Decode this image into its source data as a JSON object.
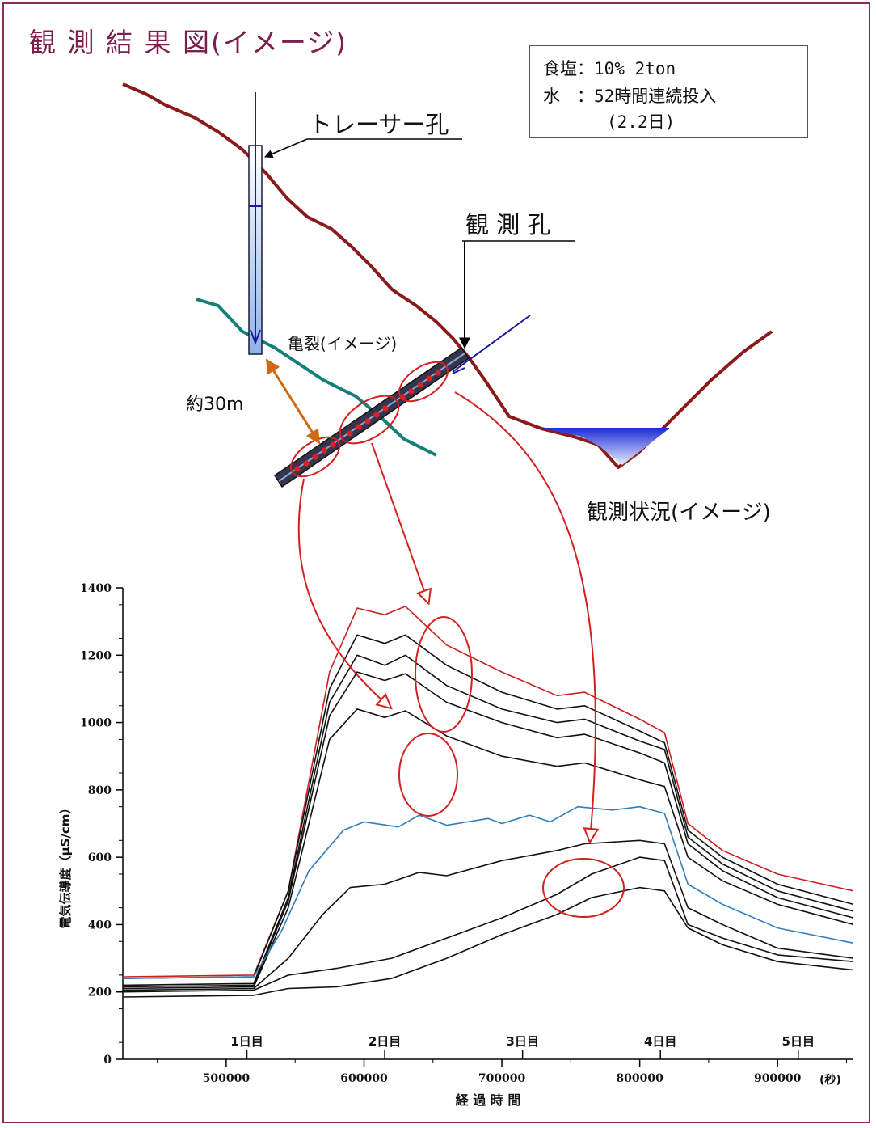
{
  "title": "観 測 結 果 図(イメージ)",
  "info_box": {
    "line1": "食塩：10% 2ton",
    "line2": "水　：52時間連続投入",
    "line3": "(2.2日)"
  },
  "diagram": {
    "tracer_hole_label": "トレーサー孔",
    "observation_hole_label": "観 測 孔",
    "crack_label": "亀裂(イメージ)",
    "distance_label": "約30m",
    "situation_label": "観測状況(イメージ)"
  },
  "colors": {
    "title": "#7a1e4e",
    "frame": "#8b2a57",
    "ground_line": "#8b1a1a",
    "crack_line": "#138078",
    "water": "#1e2fd6",
    "red_series": "#cc2020",
    "blue_series": "#2e7fc0",
    "annotation": "#d42020",
    "distance_arrow": "#d06a10"
  },
  "chart_data": {
    "type": "line",
    "xlabel": "経 過 時 間",
    "x_unit_label": "(秒)",
    "ylabel": "電気伝導度（μS/cm）",
    "xlim": [
      425000,
      955000
    ],
    "ylim": [
      0,
      1400
    ],
    "x_ticks": [
      500000,
      600000,
      700000,
      800000,
      900000
    ],
    "y_ticks": [
      0,
      200,
      400,
      600,
      800,
      1000,
      1200,
      1400
    ],
    "day_labels": [
      {
        "label": "1日目",
        "x": 515000
      },
      {
        "label": "2日目",
        "x": 615000
      },
      {
        "label": "3日目",
        "x": 715000
      },
      {
        "label": "4日目",
        "x": 815000
      },
      {
        "label": "5日目",
        "x": 915000
      }
    ],
    "series": [
      {
        "color": "#cc2020",
        "points": [
          [
            425000,
            245
          ],
          [
            520000,
            250
          ],
          [
            545000,
            500
          ],
          [
            575000,
            1150
          ],
          [
            595000,
            1340
          ],
          [
            615000,
            1320
          ],
          [
            630000,
            1345
          ],
          [
            660000,
            1230
          ],
          [
            700000,
            1150
          ],
          [
            740000,
            1080
          ],
          [
            760000,
            1090
          ],
          [
            800000,
            1010
          ],
          [
            818000,
            970
          ],
          [
            835000,
            700
          ],
          [
            860000,
            620
          ],
          [
            900000,
            550
          ],
          [
            955000,
            500
          ]
        ]
      },
      {
        "color": "#111111",
        "points": [
          [
            425000,
            240
          ],
          [
            520000,
            245
          ],
          [
            545000,
            500
          ],
          [
            575000,
            1100
          ],
          [
            595000,
            1260
          ],
          [
            615000,
            1235
          ],
          [
            630000,
            1260
          ],
          [
            660000,
            1170
          ],
          [
            700000,
            1090
          ],
          [
            740000,
            1040
          ],
          [
            760000,
            1050
          ],
          [
            800000,
            975
          ],
          [
            818000,
            940
          ],
          [
            835000,
            680
          ],
          [
            860000,
            600
          ],
          [
            900000,
            520
          ],
          [
            955000,
            460
          ]
        ]
      },
      {
        "color": "#111111",
        "points": [
          [
            425000,
            220
          ],
          [
            520000,
            225
          ],
          [
            545000,
            480
          ],
          [
            575000,
            1060
          ],
          [
            595000,
            1200
          ],
          [
            615000,
            1170
          ],
          [
            630000,
            1200
          ],
          [
            660000,
            1110
          ],
          [
            700000,
            1040
          ],
          [
            740000,
            1000
          ],
          [
            760000,
            1010
          ],
          [
            800000,
            945
          ],
          [
            818000,
            920
          ],
          [
            835000,
            660
          ],
          [
            860000,
            580
          ],
          [
            900000,
            500
          ],
          [
            955000,
            440
          ]
        ]
      },
      {
        "color": "#111111",
        "points": [
          [
            425000,
            215
          ],
          [
            520000,
            220
          ],
          [
            545000,
            470
          ],
          [
            575000,
            1020
          ],
          [
            595000,
            1150
          ],
          [
            615000,
            1125
          ],
          [
            630000,
            1145
          ],
          [
            660000,
            1060
          ],
          [
            700000,
            1000
          ],
          [
            740000,
            955
          ],
          [
            760000,
            965
          ],
          [
            800000,
            910
          ],
          [
            818000,
            880
          ],
          [
            835000,
            640
          ],
          [
            860000,
            560
          ],
          [
            900000,
            480
          ],
          [
            955000,
            420
          ]
        ]
      },
      {
        "color": "#111111",
        "points": [
          [
            425000,
            210
          ],
          [
            520000,
            215
          ],
          [
            545000,
            450
          ],
          [
            575000,
            950
          ],
          [
            595000,
            1040
          ],
          [
            615000,
            1015
          ],
          [
            630000,
            1035
          ],
          [
            660000,
            960
          ],
          [
            700000,
            900
          ],
          [
            740000,
            870
          ],
          [
            760000,
            880
          ],
          [
            800000,
            830
          ],
          [
            818000,
            810
          ],
          [
            835000,
            600
          ],
          [
            860000,
            530
          ],
          [
            900000,
            460
          ],
          [
            955000,
            400
          ]
        ]
      },
      {
        "color": "#2e7fc0",
        "points": [
          [
            425000,
            240
          ],
          [
            520000,
            245
          ],
          [
            540000,
            380
          ],
          [
            560000,
            560
          ],
          [
            585000,
            680
          ],
          [
            600000,
            705
          ],
          [
            625000,
            690
          ],
          [
            640000,
            725
          ],
          [
            660000,
            695
          ],
          [
            690000,
            715
          ],
          [
            700000,
            700
          ],
          [
            720000,
            725
          ],
          [
            735000,
            705
          ],
          [
            755000,
            750
          ],
          [
            780000,
            740
          ],
          [
            800000,
            750
          ],
          [
            818000,
            730
          ],
          [
            835000,
            520
          ],
          [
            860000,
            460
          ],
          [
            900000,
            390
          ],
          [
            955000,
            345
          ]
        ]
      },
      {
        "color": "#111111",
        "points": [
          [
            425000,
            205
          ],
          [
            520000,
            210
          ],
          [
            545000,
            300
          ],
          [
            570000,
            430
          ],
          [
            590000,
            510
          ],
          [
            615000,
            520
          ],
          [
            640000,
            555
          ],
          [
            660000,
            545
          ],
          [
            700000,
            590
          ],
          [
            740000,
            620
          ],
          [
            760000,
            640
          ],
          [
            800000,
            650
          ],
          [
            818000,
            640
          ],
          [
            835000,
            450
          ],
          [
            860000,
            400
          ],
          [
            900000,
            330
          ],
          [
            955000,
            300
          ]
        ]
      },
      {
        "color": "#111111",
        "points": [
          [
            425000,
            200
          ],
          [
            520000,
            205
          ],
          [
            545000,
            250
          ],
          [
            580000,
            270
          ],
          [
            620000,
            300
          ],
          [
            660000,
            360
          ],
          [
            700000,
            420
          ],
          [
            740000,
            490
          ],
          [
            765000,
            550
          ],
          [
            800000,
            600
          ],
          [
            818000,
            590
          ],
          [
            835000,
            400
          ],
          [
            860000,
            360
          ],
          [
            900000,
            310
          ],
          [
            955000,
            290
          ]
        ]
      },
      {
        "color": "#111111",
        "points": [
          [
            425000,
            185
          ],
          [
            520000,
            190
          ],
          [
            545000,
            210
          ],
          [
            580000,
            215
          ],
          [
            620000,
            240
          ],
          [
            660000,
            300
          ],
          [
            700000,
            370
          ],
          [
            740000,
            430
          ],
          [
            765000,
            480
          ],
          [
            800000,
            510
          ],
          [
            818000,
            500
          ],
          [
            835000,
            390
          ],
          [
            860000,
            340
          ],
          [
            900000,
            290
          ],
          [
            955000,
            265
          ]
        ]
      }
    ]
  }
}
